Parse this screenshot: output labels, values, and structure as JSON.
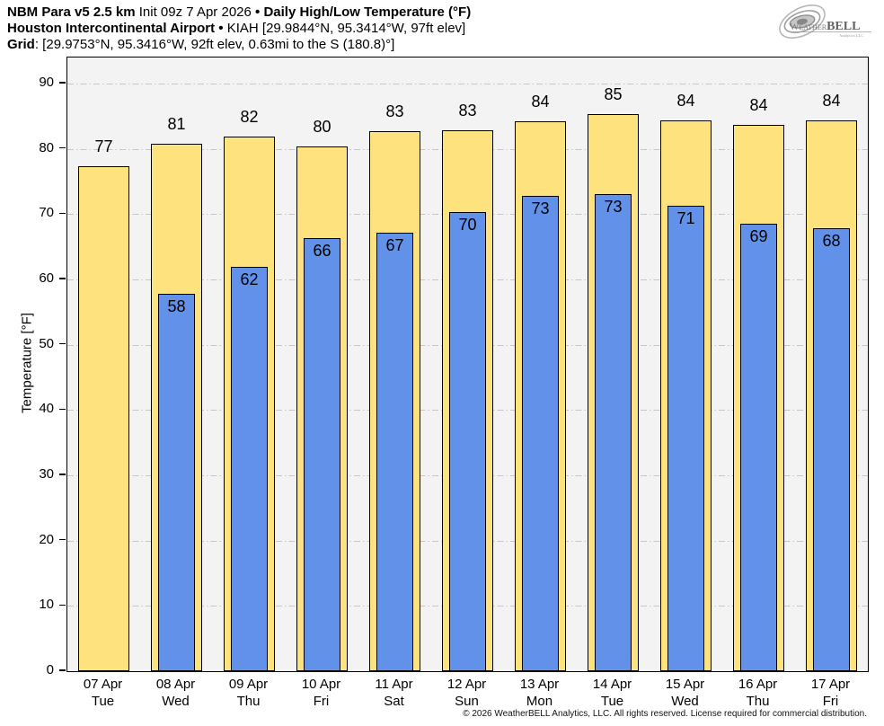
{
  "header": {
    "line1": {
      "model": "NBM Para v5 2.5 km",
      "init": "Init 09z 7 Apr 2026",
      "sep": "•",
      "product": "Daily High/Low Temperature (°F)"
    },
    "line2": {
      "station": "Houston Intercontinental Airport",
      "sep": "•",
      "details": "KIAH [29.9844°N, 95.3414°W, 97ft elev]"
    },
    "line3": {
      "label": "Grid",
      "details": ": [29.9753°N, 95.3416°W, 92ft elev, 0.63mi to the S (180.8)°]"
    }
  },
  "logo": {
    "weather_initial": "W",
    "weather_rest": "EATHER",
    "bell": "BELL",
    "subtext": "Analytics LLC"
  },
  "chart_data": {
    "type": "bar",
    "title": "Daily High/Low Temperature (°F)",
    "subtitle": "NBM Para v5 2.5 km · Houston Intercontinental Airport (KIAH)",
    "categories": [
      {
        "date": "07 Apr",
        "day": "Tue"
      },
      {
        "date": "08 Apr",
        "day": "Wed"
      },
      {
        "date": "09 Apr",
        "day": "Thu"
      },
      {
        "date": "10 Apr",
        "day": "Fri"
      },
      {
        "date": "11 Apr",
        "day": "Sat"
      },
      {
        "date": "12 Apr",
        "day": "Sun"
      },
      {
        "date": "13 Apr",
        "day": "Mon"
      },
      {
        "date": "14 Apr",
        "day": "Tue"
      },
      {
        "date": "15 Apr",
        "day": "Wed"
      },
      {
        "date": "16 Apr",
        "day": "Thu"
      },
      {
        "date": "17 Apr",
        "day": "Fri"
      }
    ],
    "series": [
      {
        "name": "High",
        "color": "#fde27d",
        "values": [
          77,
          81,
          82,
          80,
          83,
          83,
          84,
          85,
          84,
          84,
          84
        ],
        "render_heights": [
          77.3,
          80.8,
          81.9,
          80.4,
          82.7,
          82.9,
          84.2,
          85.4,
          84.4,
          83.7,
          84.4
        ]
      },
      {
        "name": "Low",
        "color": "#6191e8",
        "values": [
          null,
          58,
          62,
          66,
          67,
          70,
          73,
          73,
          71,
          69,
          68
        ],
        "render_heights": [
          null,
          57.8,
          62.0,
          66.3,
          67.2,
          70.4,
          72.8,
          73.1,
          71.3,
          68.6,
          67.8
        ]
      }
    ],
    "ylabel": "Temperature [°F]",
    "ylim": [
      0,
      94
    ],
    "yticks": [
      0,
      10,
      20,
      30,
      40,
      50,
      60,
      70,
      80,
      90
    ],
    "grid": true,
    "legend": "none",
    "plot_bg": "#f3f3f3",
    "bar_border": "#000000"
  },
  "footer": {
    "copyright": "© 2026 WeatherBELL Analytics, LLC. All rights reserved. License required for commercial distribution."
  }
}
